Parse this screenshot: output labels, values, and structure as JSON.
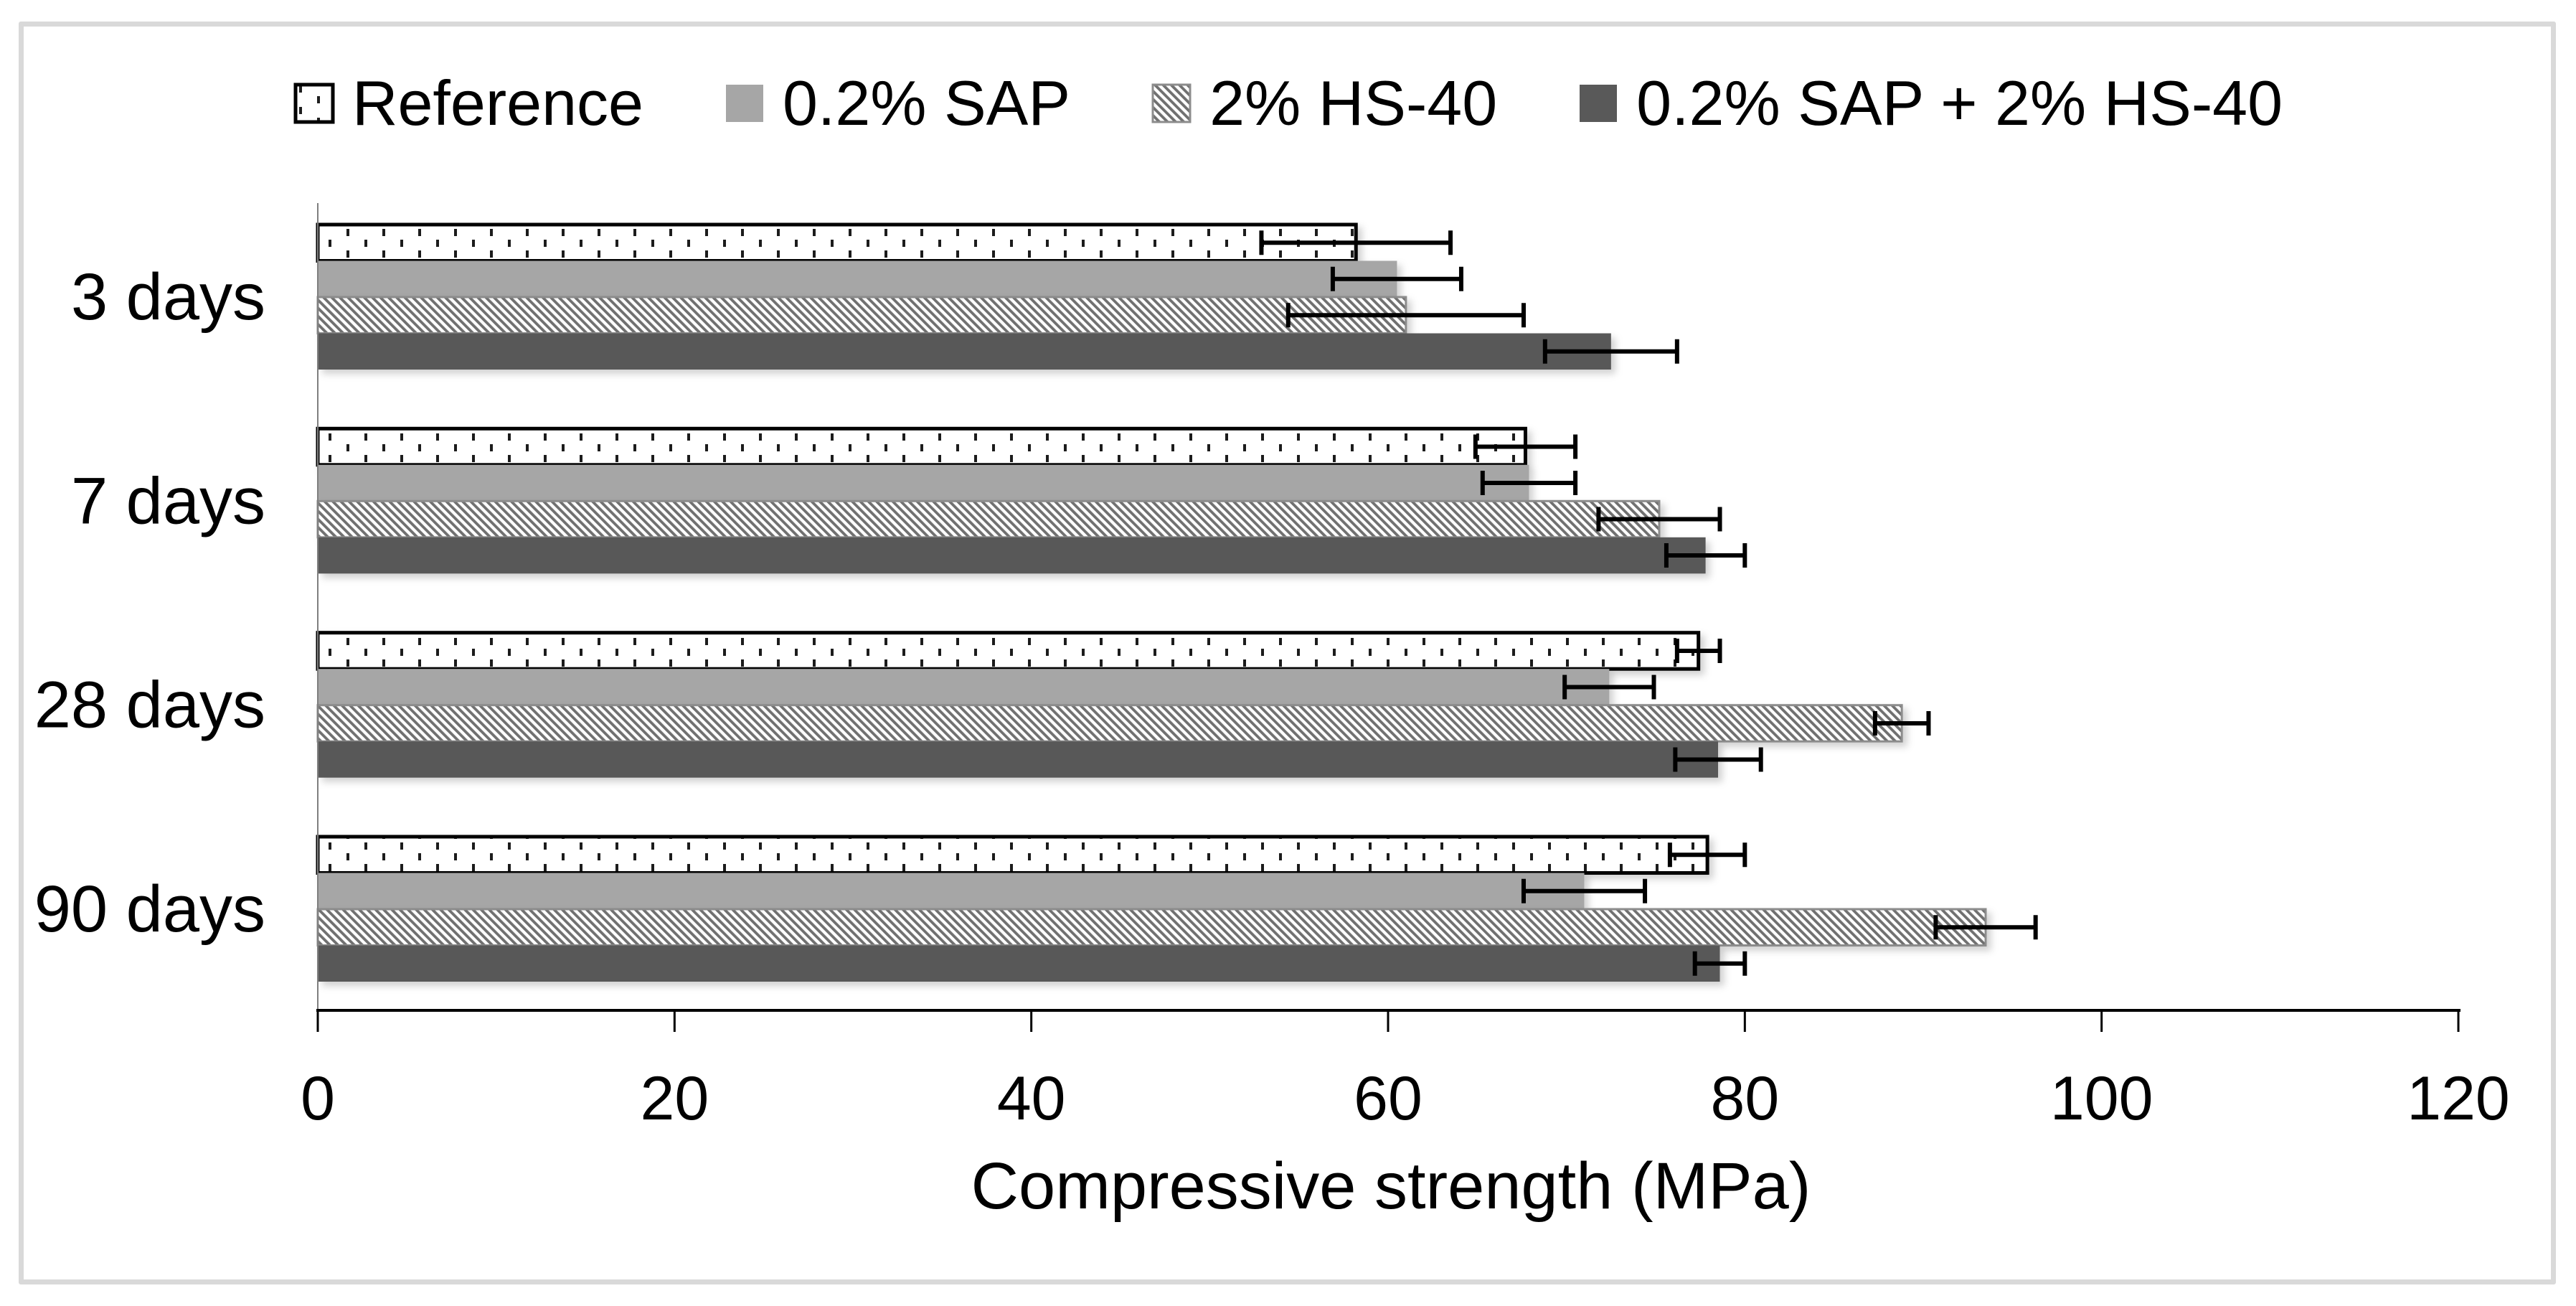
{
  "frame": {
    "border_color": "#d9d9d9",
    "background": "#ffffff"
  },
  "colors": {
    "light_gray": "#a6a6a6",
    "dark_gray": "#595959",
    "hatch_gray": "#707070",
    "hatch_border": "#8c8c8c",
    "dot_color": "#1f1f1f",
    "axis_color": "#000000",
    "category_axis_color": "#7f7f7f",
    "text_color": "#000000"
  },
  "legend": {
    "position": "top",
    "items": [
      {
        "label": "Reference",
        "swatch": "dotted-outline"
      },
      {
        "label": "0.2% SAP",
        "swatch": "solid-light-gray"
      },
      {
        "label": "2% HS-40",
        "swatch": "diagonal-hatch"
      },
      {
        "label": "0.2% SAP + 2% HS-40",
        "swatch": "solid-dark-gray"
      }
    ]
  },
  "chart_data": {
    "type": "bar",
    "orientation": "horizontal",
    "title": "",
    "xlabel": "Compressive strength (MPa)",
    "ylabel": "",
    "categories": [
      "3 days",
      "7 days",
      "28 days",
      "90 days"
    ],
    "series": [
      {
        "name": "Reference",
        "style": "dotted-outline",
        "values": [
          58.2,
          67.7,
          77.4,
          77.9
        ],
        "errors": [
          5.3,
          2.8,
          1.2,
          2.1
        ]
      },
      {
        "name": "0.2% SAP",
        "style": "solid-light-gray",
        "values": [
          60.5,
          67.9,
          72.4,
          71.0
        ],
        "errors": [
          3.6,
          2.6,
          2.5,
          3.4
        ]
      },
      {
        "name": "2% HS-40",
        "style": "diagonal-hatch",
        "values": [
          61.0,
          75.2,
          88.8,
          93.5
        ],
        "errors": [
          6.6,
          3.4,
          1.5,
          2.8
        ]
      },
      {
        "name": "0.2% SAP + 2% HS-40",
        "style": "solid-dark-gray",
        "values": [
          72.5,
          77.8,
          78.5,
          78.6
        ],
        "errors": [
          3.7,
          2.2,
          2.4,
          1.4
        ]
      }
    ],
    "x_axis": {
      "min": 0,
      "max": 120,
      "tick_step": 20,
      "tick_labels": [
        "0",
        "20",
        "40",
        "60",
        "80",
        "100",
        "120"
      ]
    },
    "error_bars": true,
    "grid": false,
    "legend_position": "top"
  }
}
